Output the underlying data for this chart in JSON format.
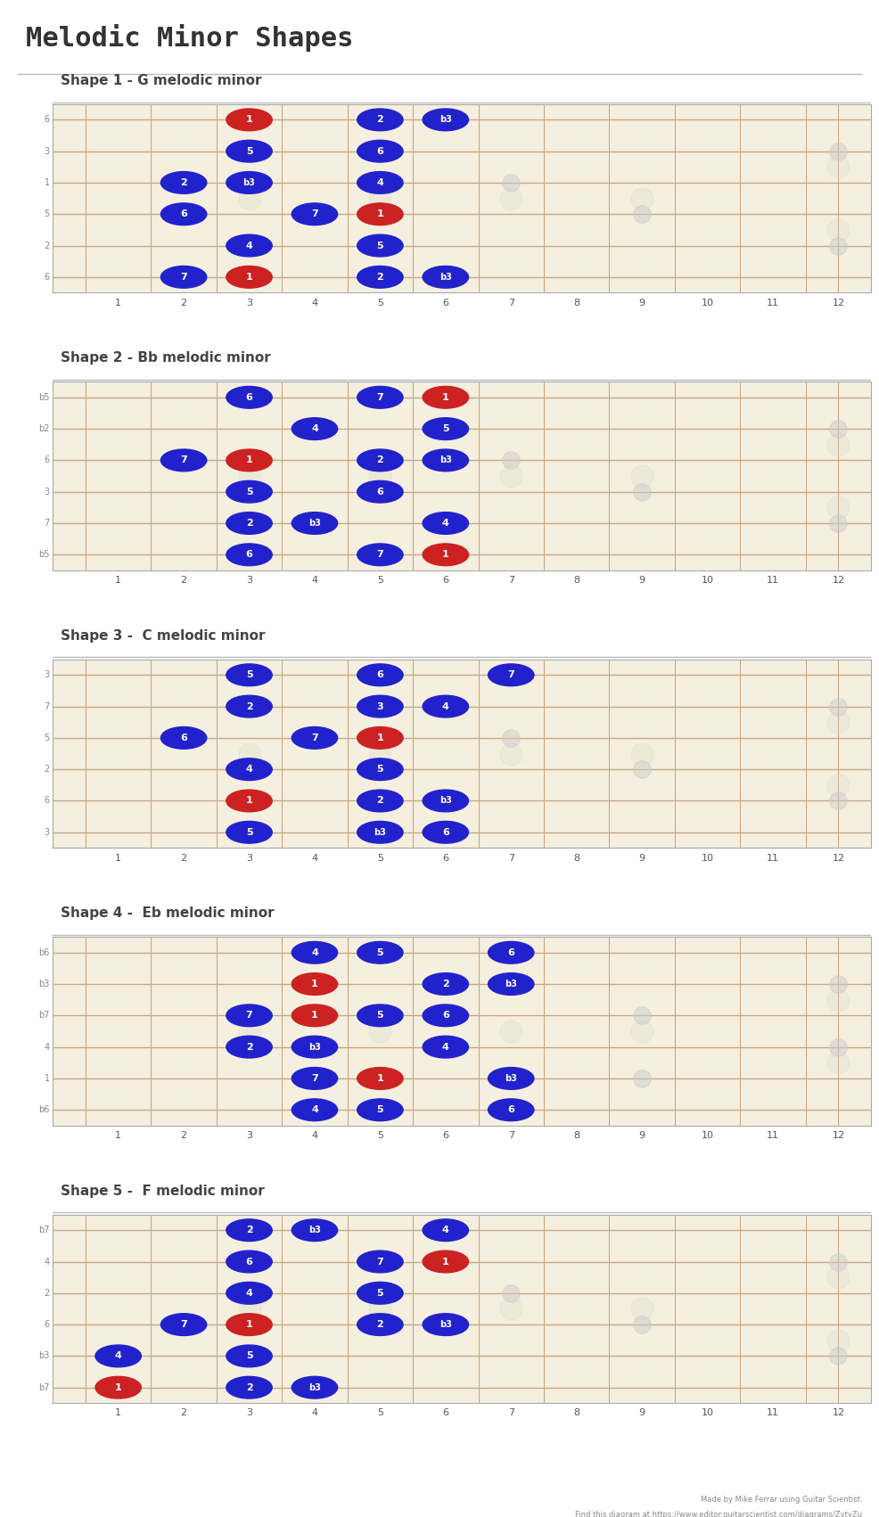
{
  "title": "Melodic Minor Shapes",
  "bg_color": "#FDFAF5",
  "fretboard_bg": "#F5EFE0",
  "fret_line_color": "#C8A882",
  "string_color": "#C8A882",
  "nut_color": "#AAAAAA",
  "dot_color_ghost": "#CCCCCC",
  "blue": "#2222CC",
  "red": "#CC2222",
  "text_color": "#444444",
  "title_color": "#333333",
  "num_frets": 12,
  "num_strings": 6,
  "shapes": [
    {
      "label": "Shape 1 - G melodic minor",
      "string_labels": [
        "6",
        "3",
        "1",
        "5",
        "2",
        "6"
      ],
      "notes": [
        {
          "fret": 3,
          "string": 0,
          "label": "1",
          "color": "red"
        },
        {
          "fret": 5,
          "string": 0,
          "label": "2",
          "color": "blue"
        },
        {
          "fret": 6,
          "string": 0,
          "label": "b3",
          "color": "blue"
        },
        {
          "fret": 3,
          "string": 1,
          "label": "5",
          "color": "blue"
        },
        {
          "fret": 5,
          "string": 1,
          "label": "6",
          "color": "blue"
        },
        {
          "fret": 2,
          "string": 2,
          "label": "2",
          "color": "blue"
        },
        {
          "fret": 3,
          "string": 2,
          "label": "b3",
          "color": "blue"
        },
        {
          "fret": 5,
          "string": 2,
          "label": "4",
          "color": "blue"
        },
        {
          "fret": 2,
          "string": 3,
          "label": "6",
          "color": "blue"
        },
        {
          "fret": 4,
          "string": 3,
          "label": "7",
          "color": "blue"
        },
        {
          "fret": 5,
          "string": 3,
          "label": "1",
          "color": "red"
        },
        {
          "fret": 3,
          "string": 4,
          "label": "4",
          "color": "blue"
        },
        {
          "fret": 5,
          "string": 4,
          "label": "5",
          "color": "blue"
        },
        {
          "fret": 2,
          "string": 5,
          "label": "7",
          "color": "blue"
        },
        {
          "fret": 3,
          "string": 5,
          "label": "1",
          "color": "red"
        },
        {
          "fret": 5,
          "string": 5,
          "label": "2",
          "color": "blue"
        },
        {
          "fret": 6,
          "string": 5,
          "label": "b3",
          "color": "blue"
        }
      ],
      "ghost_dots": [
        {
          "fret": 7,
          "string": 2
        },
        {
          "fret": 9,
          "string": 3
        },
        {
          "fret": 12,
          "string": 1
        },
        {
          "fret": 12,
          "string": 4
        }
      ]
    },
    {
      "label": "Shape 2 - Bb melodic minor",
      "string_labels": [
        "b5",
        "b2",
        "6",
        "3",
        "7",
        "b5"
      ],
      "notes": [
        {
          "fret": 3,
          "string": 0,
          "label": "6",
          "color": "blue"
        },
        {
          "fret": 5,
          "string": 0,
          "label": "7",
          "color": "blue"
        },
        {
          "fret": 6,
          "string": 0,
          "label": "1",
          "color": "red"
        },
        {
          "fret": 4,
          "string": 1,
          "label": "4",
          "color": "blue"
        },
        {
          "fret": 6,
          "string": 1,
          "label": "5",
          "color": "blue"
        },
        {
          "fret": 2,
          "string": 2,
          "label": "7",
          "color": "blue"
        },
        {
          "fret": 3,
          "string": 2,
          "label": "1",
          "color": "red"
        },
        {
          "fret": 5,
          "string": 2,
          "label": "2",
          "color": "blue"
        },
        {
          "fret": 6,
          "string": 2,
          "label": "b3",
          "color": "blue"
        },
        {
          "fret": 3,
          "string": 3,
          "label": "5",
          "color": "blue"
        },
        {
          "fret": 5,
          "string": 3,
          "label": "6",
          "color": "blue"
        },
        {
          "fret": 3,
          "string": 4,
          "label": "2",
          "color": "blue"
        },
        {
          "fret": 4,
          "string": 4,
          "label": "b3",
          "color": "blue"
        },
        {
          "fret": 6,
          "string": 4,
          "label": "4",
          "color": "blue"
        },
        {
          "fret": 3,
          "string": 5,
          "label": "6",
          "color": "blue"
        },
        {
          "fret": 5,
          "string": 5,
          "label": "7",
          "color": "blue"
        },
        {
          "fret": 6,
          "string": 5,
          "label": "1",
          "color": "red"
        }
      ],
      "ghost_dots": [
        {
          "fret": 7,
          "string": 2
        },
        {
          "fret": 9,
          "string": 3
        },
        {
          "fret": 12,
          "string": 1
        },
        {
          "fret": 12,
          "string": 4
        }
      ]
    },
    {
      "label": "Shape 3 -  C melodic minor",
      "string_labels": [
        "3",
        "7",
        "5",
        "2",
        "6",
        "3"
      ],
      "notes": [
        {
          "fret": 3,
          "string": 0,
          "label": "5",
          "color": "blue"
        },
        {
          "fret": 5,
          "string": 0,
          "label": "6",
          "color": "blue"
        },
        {
          "fret": 7,
          "string": 0,
          "label": "7",
          "color": "blue"
        },
        {
          "fret": 3,
          "string": 1,
          "label": "2",
          "color": "blue"
        },
        {
          "fret": 5,
          "string": 1,
          "label": "3",
          "color": "blue"
        },
        {
          "fret": 6,
          "string": 1,
          "label": "4",
          "color": "blue"
        },
        {
          "fret": 2,
          "string": 2,
          "label": "6",
          "color": "blue"
        },
        {
          "fret": 4,
          "string": 2,
          "label": "7",
          "color": "blue"
        },
        {
          "fret": 5,
          "string": 2,
          "label": "1",
          "color": "red"
        },
        {
          "fret": 3,
          "string": 3,
          "label": "4",
          "color": "blue"
        },
        {
          "fret": 5,
          "string": 3,
          "label": "5",
          "color": "blue"
        },
        {
          "fret": 3,
          "string": 4,
          "label": "1",
          "color": "red"
        },
        {
          "fret": 5,
          "string": 4,
          "label": "2",
          "color": "blue"
        },
        {
          "fret": 6,
          "string": 4,
          "label": "b3",
          "color": "blue"
        },
        {
          "fret": 3,
          "string": 5,
          "label": "5",
          "color": "blue"
        },
        {
          "fret": 5,
          "string": 5,
          "label": "b3",
          "color": "blue"
        },
        {
          "fret": 6,
          "string": 5,
          "label": "6",
          "color": "blue"
        }
      ],
      "ghost_dots": [
        {
          "fret": 7,
          "string": 2
        },
        {
          "fret": 9,
          "string": 3
        },
        {
          "fret": 12,
          "string": 1
        },
        {
          "fret": 12,
          "string": 4
        }
      ]
    },
    {
      "label": "Shape 4 -  Eb melodic minor",
      "string_labels": [
        "b6",
        "b3",
        "b7",
        "4",
        "1",
        "b6"
      ],
      "notes": [
        {
          "fret": 4,
          "string": 0,
          "label": "4",
          "color": "blue"
        },
        {
          "fret": 5,
          "string": 0,
          "label": "5",
          "color": "blue"
        },
        {
          "fret": 7,
          "string": 0,
          "label": "6",
          "color": "blue"
        },
        {
          "fret": 4,
          "string": 1,
          "label": "1",
          "color": "red"
        },
        {
          "fret": 6,
          "string": 1,
          "label": "2",
          "color": "blue"
        },
        {
          "fret": 7,
          "string": 1,
          "label": "b3",
          "color": "blue"
        },
        {
          "fret": 3,
          "string": 2,
          "label": "7",
          "color": "blue"
        },
        {
          "fret": 4,
          "string": 2,
          "label": "1",
          "color": "red"
        },
        {
          "fret": 5,
          "string": 2,
          "label": "5",
          "color": "blue"
        },
        {
          "fret": 6,
          "string": 2,
          "label": "6",
          "color": "blue"
        },
        {
          "fret": 3,
          "string": 3,
          "label": "2",
          "color": "blue"
        },
        {
          "fret": 4,
          "string": 3,
          "label": "b3",
          "color": "blue"
        },
        {
          "fret": 6,
          "string": 3,
          "label": "4",
          "color": "blue"
        },
        {
          "fret": 4,
          "string": 4,
          "label": "7",
          "color": "blue"
        },
        {
          "fret": 5,
          "string": 4,
          "label": "1",
          "color": "red"
        },
        {
          "fret": 7,
          "string": 4,
          "label": "b3",
          "color": "blue"
        },
        {
          "fret": 4,
          "string": 5,
          "label": "4",
          "color": "blue"
        },
        {
          "fret": 5,
          "string": 5,
          "label": "5",
          "color": "blue"
        },
        {
          "fret": 7,
          "string": 5,
          "label": "6",
          "color": "blue"
        }
      ],
      "ghost_dots": [
        {
          "fret": 9,
          "string": 2
        },
        {
          "fret": 9,
          "string": 4
        },
        {
          "fret": 12,
          "string": 1
        },
        {
          "fret": 12,
          "string": 3
        }
      ]
    },
    {
      "label": "Shape 5 -  F melodic minor",
      "string_labels": [
        "b7",
        "4",
        "2",
        "6",
        "b3",
        "b7"
      ],
      "notes": [
        {
          "fret": 3,
          "string": 0,
          "label": "2",
          "color": "blue"
        },
        {
          "fret": 4,
          "string": 0,
          "label": "b3",
          "color": "blue"
        },
        {
          "fret": 6,
          "string": 0,
          "label": "4",
          "color": "blue"
        },
        {
          "fret": 3,
          "string": 1,
          "label": "6",
          "color": "blue"
        },
        {
          "fret": 5,
          "string": 1,
          "label": "7",
          "color": "blue"
        },
        {
          "fret": 6,
          "string": 1,
          "label": "1",
          "color": "red"
        },
        {
          "fret": 3,
          "string": 2,
          "label": "4",
          "color": "blue"
        },
        {
          "fret": 5,
          "string": 2,
          "label": "5",
          "color": "blue"
        },
        {
          "fret": 2,
          "string": 3,
          "label": "7",
          "color": "blue"
        },
        {
          "fret": 3,
          "string": 3,
          "label": "1",
          "color": "red"
        },
        {
          "fret": 5,
          "string": 3,
          "label": "2",
          "color": "blue"
        },
        {
          "fret": 6,
          "string": 3,
          "label": "b3",
          "color": "blue"
        },
        {
          "fret": 1,
          "string": 4,
          "label": "4",
          "color": "blue"
        },
        {
          "fret": 3,
          "string": 4,
          "label": "5",
          "color": "blue"
        },
        {
          "fret": 3,
          "string": 5,
          "label": "2",
          "color": "blue"
        },
        {
          "fret": 4,
          "string": 5,
          "label": "b3",
          "color": "blue"
        },
        {
          "fret": 1,
          "string": 5,
          "label": "1",
          "color": "red"
        }
      ],
      "ghost_dots": [
        {
          "fret": 7,
          "string": 2
        },
        {
          "fret": 9,
          "string": 3
        },
        {
          "fret": 12,
          "string": 1
        },
        {
          "fret": 12,
          "string": 4
        }
      ]
    }
  ],
  "footer": "Made by Mike Ferrar using Guitar Scientist.",
  "footer2": "Find this diagram at https://www.editor.guitarscientist.com/diagrams/ZytyZu"
}
